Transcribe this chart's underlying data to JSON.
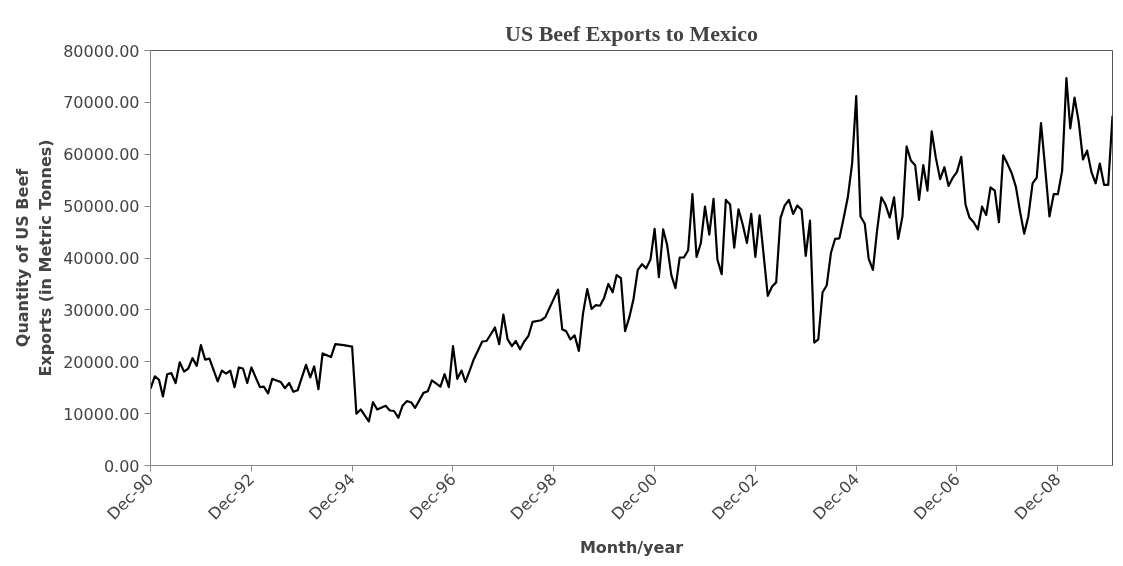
{
  "chart_data": {
    "type": "line",
    "title": "US Beef Exports to Mexico",
    "xlabel": "Month/year",
    "ylabel": "Quantity of US Beef Exports (in Metric Tonnes)",
    "x": [
      "1990-12",
      "1991-01",
      "1991-02",
      "1991-03",
      "1991-04",
      "1991-05",
      "1991-06",
      "1991-07",
      "1991-08",
      "1991-09",
      "1991-10",
      "1991-11",
      "1991-12",
      "1992-01",
      "1992-02",
      "1992-04",
      "1992-05",
      "1992-06",
      "1992-07",
      "1992-08",
      "1992-09",
      "1992-10",
      "1992-11",
      "1992-12",
      "1993-02",
      "1993-03",
      "1993-04",
      "1993-05",
      "1993-07",
      "1993-08",
      "1993-09",
      "1993-10",
      "1993-11",
      "1994-01",
      "1994-02",
      "1994-03",
      "1994-04",
      "1994-05",
      "1994-07",
      "1994-08",
      "1994-10",
      "1994-12",
      "1995-01",
      "1995-02",
      "1995-04",
      "1995-05",
      "1995-06",
      "1995-08",
      "1995-09",
      "1995-10",
      "1995-11",
      "1995-12",
      "1996-01",
      "1996-02",
      "1996-03",
      "1996-05",
      "1996-06",
      "1996-07",
      "1996-09",
      "1996-10",
      "1996-11",
      "1996-12",
      "1997-01",
      "1997-02",
      "1997-03",
      "1997-04",
      "1997-05",
      "1997-07",
      "1997-08",
      "1997-09",
      "1997-10",
      "1997-11",
      "1997-12",
      "1998-01",
      "1998-02",
      "1998-03",
      "1998-04",
      "1998-05",
      "1998-06",
      "1998-07",
      "1998-09",
      "1998-10",
      "1999-01",
      "1999-02",
      "1999-03",
      "1999-04",
      "1999-05",
      "1999-06",
      "1999-07",
      "1999-08",
      "1999-09",
      "1999-10",
      "1999-11",
      "1999-12",
      "2000-01",
      "2000-02",
      "2000-03",
      "2000-04",
      "2000-05",
      "2000-06",
      "2000-07",
      "2000-08",
      "2000-09",
      "2000-10",
      "2000-11",
      "2000-12",
      "2001-01",
      "2001-02",
      "2001-03",
      "2001-04",
      "2001-05",
      "2001-06",
      "2001-07",
      "2001-08",
      "2001-09",
      "2001-10",
      "2001-11",
      "2001-12",
      "2002-01",
      "2002-02",
      "2002-03",
      "2002-04",
      "2002-05",
      "2002-06",
      "2002-07",
      "2002-08",
      "2002-09",
      "2002-10",
      "2002-11",
      "2002-12",
      "2003-01",
      "2003-03",
      "2003-04",
      "2003-05",
      "2003-06",
      "2003-07",
      "2003-08",
      "2003-09",
      "2003-10",
      "2003-11",
      "2003-12",
      "2004-01",
      "2004-02",
      "2004-03",
      "2004-04",
      "2004-05",
      "2004-06",
      "2004-07",
      "2004-08",
      "2004-09",
      "2004-10",
      "2004-11",
      "2004-12",
      "2005-01",
      "2005-02",
      "2005-03",
      "2005-04",
      "2005-05",
      "2005-06",
      "2005-07",
      "2005-08",
      "2005-09",
      "2005-10",
      "2005-11",
      "2005-12",
      "2006-01",
      "2006-02",
      "2006-03",
      "2006-04",
      "2006-05",
      "2006-06",
      "2006-07",
      "2006-08",
      "2006-09",
      "2006-10",
      "2006-11",
      "2006-12",
      "2007-01",
      "2007-02",
      "2007-03",
      "2007-04",
      "2007-05",
      "2007-06",
      "2007-07",
      "2007-08",
      "2007-09",
      "2007-10",
      "2007-11",
      "2007-12",
      "2008-01",
      "2008-02",
      "2008-03",
      "2008-04",
      "2008-05",
      "2008-06",
      "2008-07",
      "2008-08",
      "2008-09",
      "2008-10",
      "2008-11",
      "2008-12",
      "2009-01",
      "2009-02",
      "2009-03",
      "2009-04",
      "2009-05",
      "2009-06",
      "2009-07",
      "2009-08",
      "2009-09",
      "2009-10",
      "2009-11",
      "2009-12",
      "2010-01"
    ],
    "series": [
      {
        "color": "#000000",
        "values": [
          14800,
          17200,
          16500,
          13300,
          17600,
          17800,
          15900,
          19900,
          18100,
          18700,
          20700,
          19200,
          23200,
          20400,
          20600,
          16200,
          18300,
          17700,
          18300,
          15100,
          18900,
          18700,
          15900,
          18900,
          15100,
          15200,
          13900,
          16700,
          16100,
          14900,
          15900,
          14200,
          14500,
          19400,
          17000,
          19100,
          14700,
          21600,
          20900,
          23400,
          23200,
          22900,
          10000,
          10800,
          8500,
          12200,
          10800,
          11500,
          10600,
          10500,
          9200,
          11500,
          12400,
          12200,
          11100,
          14000,
          14300,
          16400,
          15200,
          17600,
          15100,
          23000,
          16700,
          18300,
          16100,
          18300,
          20500,
          23900,
          24000,
          25300,
          26600,
          23400,
          29100,
          24300,
          23000,
          24000,
          22400,
          23900,
          25000,
          27700,
          28000,
          28600,
          33900,
          26200,
          25900,
          24300,
          25100,
          22100,
          29300,
          34000,
          30200,
          30900,
          30800,
          32300,
          35000,
          33400,
          36700,
          36100,
          25900,
          28600,
          32100,
          37700,
          38800,
          38000,
          39700,
          45600,
          36300,
          45500,
          42600,
          36700,
          34200,
          40100,
          40100,
          41500,
          52300,
          40200,
          42900,
          49900,
          44500,
          51400,
          39700,
          36900,
          51200,
          50300,
          42000,
          49400,
          46400,
          42900,
          48500,
          40200,
          48200,
          32700,
          34500,
          35300,
          47700,
          50100,
          51200,
          48500,
          50100,
          49300,
          40400,
          47200,
          23700,
          24300,
          33400,
          34700,
          41000,
          43700,
          43800,
          47700,
          51700,
          58200,
          71200,
          48000,
          46600,
          39900,
          37700,
          45300,
          51700,
          50300,
          47800,
          51700,
          43700,
          48000,
          61500,
          58800,
          57900,
          51200,
          57900,
          53000,
          64400,
          59300,
          55200,
          57500,
          53900,
          55500,
          56600,
          59500,
          50300,
          47800,
          46900,
          45500,
          49900,
          48300,
          53600,
          53000,
          46900,
          59800,
          58200,
          56400,
          53700,
          49100,
          44700,
          48000,
          54400,
          55500,
          66000,
          57100,
          48000,
          52300,
          52300,
          56800,
          74700,
          65000,
          70900,
          66300,
          59000,
          60700,
          56600,
          54400,
          58200,
          54100,
          54100,
          67400
        ]
      }
    ],
    "xlim": [
      "1990-12",
      "2010-01"
    ],
    "xticks": [
      {
        "value": "1990-12",
        "label": "Dec-90"
      },
      {
        "value": "1992-12",
        "label": "Dec-92"
      },
      {
        "value": "1994-12",
        "label": "Dec-94"
      },
      {
        "value": "1996-12",
        "label": "Dec-96"
      },
      {
        "value": "1998-12",
        "label": "Dec-98"
      },
      {
        "value": "2000-12",
        "label": "Dec-00"
      },
      {
        "value": "2002-12",
        "label": "Dec-02"
      },
      {
        "value": "2004-12",
        "label": "Dec-04"
      },
      {
        "value": "2006-12",
        "label": "Dec-06"
      },
      {
        "value": "2008-12",
        "label": "Dec-08"
      }
    ],
    "ylim": [
      0,
      80000
    ],
    "yticks": [
      {
        "value": 0,
        "label": "0.00"
      },
      {
        "value": 10000,
        "label": "10000.00"
      },
      {
        "value": 20000,
        "label": "20000.00"
      },
      {
        "value": 30000,
        "label": "30000.00"
      },
      {
        "value": 40000,
        "label": "40000.00"
      },
      {
        "value": 50000,
        "label": "50000.00"
      },
      {
        "value": 60000,
        "label": "60000.00"
      },
      {
        "value": 70000,
        "label": "70000.00"
      },
      {
        "value": 80000,
        "label": "80000.00"
      }
    ],
    "grid": false,
    "marker": "none",
    "line_style": "solid"
  }
}
